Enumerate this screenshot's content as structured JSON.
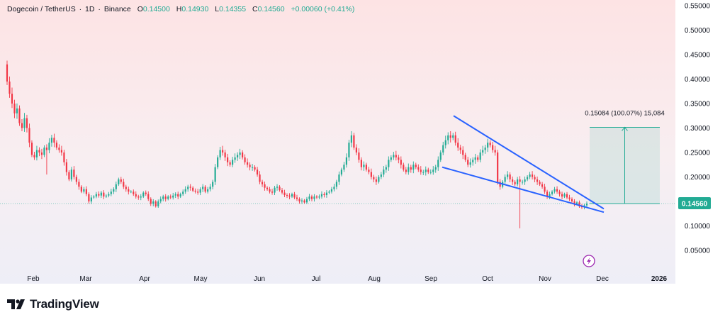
{
  "legend": {
    "symbol": "Dogecoin / TetherUS",
    "interval": "1D",
    "exchange": "Binance",
    "open_label": "O",
    "open": "0.14500",
    "high_label": "H",
    "high": "0.14930",
    "low_label": "L",
    "low": "0.14355",
    "close_label": "C",
    "close": "0.14560",
    "change": "+0.00060 (+0.41%)"
  },
  "price_badge": "0.14560",
  "measure_label": "0.15084 (100.07%) 15,084",
  "brand": {
    "name": "TradingView"
  },
  "colors": {
    "up": "#22ab94",
    "down": "#f23645",
    "trendline": "#2962ff",
    "badge": "#22ab94"
  },
  "icons": [
    "tradingview-logo-icon",
    "lightning-icon"
  ],
  "chart_data": {
    "type": "candlestick",
    "yaxis": {
      "ticks": [
        "0.55000",
        "0.50000",
        "0.45000",
        "0.40000",
        "0.35000",
        "0.30000",
        "0.25000",
        "0.20000",
        "0.15000",
        "0.10000",
        "0.05000"
      ],
      "range": [
        0.02,
        0.555
      ]
    },
    "xaxis": {
      "ticks": [
        "Feb",
        "Mar",
        "Apr",
        "May",
        "Jun",
        "Jul",
        "Aug",
        "Sep",
        "Oct",
        "Nov",
        "Dec",
        "2026"
      ]
    },
    "series": [
      {
        "values_close": [
          0.395,
          0.37,
          0.35,
          0.33,
          0.34,
          0.31,
          0.3,
          0.32,
          0.3,
          0.27,
          0.245,
          0.24,
          0.255,
          0.25,
          0.245,
          0.26,
          0.255,
          0.27,
          0.28,
          0.27,
          0.26,
          0.255,
          0.25,
          0.23,
          0.21,
          0.195,
          0.215,
          0.2,
          0.19,
          0.18,
          0.17,
          0.175,
          0.165,
          0.15,
          0.158,
          0.16,
          0.165,
          0.162,
          0.168,
          0.16,
          0.162,
          0.165,
          0.17,
          0.175,
          0.185,
          0.195,
          0.19,
          0.18,
          0.175,
          0.17,
          0.17,
          0.165,
          0.16,
          0.158,
          0.16,
          0.168,
          0.165,
          0.155,
          0.145,
          0.15,
          0.14,
          0.15,
          0.155,
          0.16,
          0.155,
          0.16,
          0.158,
          0.162,
          0.165,
          0.16,
          0.165,
          0.17,
          0.175,
          0.18,
          0.178,
          0.172,
          0.17,
          0.168,
          0.175,
          0.18,
          0.17,
          0.175,
          0.18,
          0.19,
          0.22,
          0.24,
          0.255,
          0.25,
          0.24,
          0.23,
          0.225,
          0.235,
          0.24,
          0.245,
          0.25,
          0.24,
          0.23,
          0.225,
          0.22,
          0.22,
          0.215,
          0.205,
          0.19,
          0.185,
          0.178,
          0.175,
          0.17,
          0.168,
          0.178,
          0.18,
          0.173,
          0.168,
          0.163,
          0.162,
          0.16,
          0.165,
          0.158,
          0.155,
          0.15,
          0.152,
          0.148,
          0.155,
          0.16,
          0.155,
          0.16,
          0.158,
          0.16,
          0.165,
          0.163,
          0.168,
          0.17,
          0.175,
          0.18,
          0.19,
          0.205,
          0.215,
          0.225,
          0.24,
          0.27,
          0.285,
          0.26,
          0.25,
          0.235,
          0.22,
          0.225,
          0.215,
          0.21,
          0.2,
          0.195,
          0.19,
          0.2,
          0.205,
          0.215,
          0.22,
          0.235,
          0.24,
          0.245,
          0.24,
          0.235,
          0.225,
          0.215,
          0.21,
          0.22,
          0.215,
          0.225,
          0.22,
          0.215,
          0.21,
          0.21,
          0.215,
          0.21,
          0.21,
          0.215,
          0.22,
          0.235,
          0.25,
          0.265,
          0.275,
          0.285,
          0.28,
          0.285,
          0.27,
          0.26,
          0.255,
          0.245,
          0.235,
          0.225,
          0.23,
          0.235,
          0.24,
          0.235,
          0.25,
          0.255,
          0.26,
          0.27,
          0.265,
          0.255,
          0.25,
          0.19,
          0.18,
          0.19,
          0.2,
          0.205,
          0.195,
          0.19,
          0.185,
          0.195,
          0.19,
          0.19,
          0.195,
          0.2,
          0.205,
          0.2,
          0.195,
          0.19,
          0.185,
          0.18,
          0.17,
          0.16,
          0.165,
          0.17,
          0.175,
          0.17,
          0.165,
          0.16,
          0.165,
          0.158,
          0.155,
          0.15,
          0.145,
          0.148,
          0.14,
          0.138,
          0.142,
          0.1456
        ]
      }
    ],
    "annotations": {
      "trendline_upper": {
        "from": [
          "Sep",
          0.325
        ],
        "to": [
          "Dec",
          0.135
        ]
      },
      "trendline_lower": {
        "from": [
          "Sep",
          0.22
        ],
        "to": [
          "Dec",
          0.128
        ]
      },
      "measure_box": {
        "low": 0.1456,
        "high": 0.3015
      }
    }
  }
}
